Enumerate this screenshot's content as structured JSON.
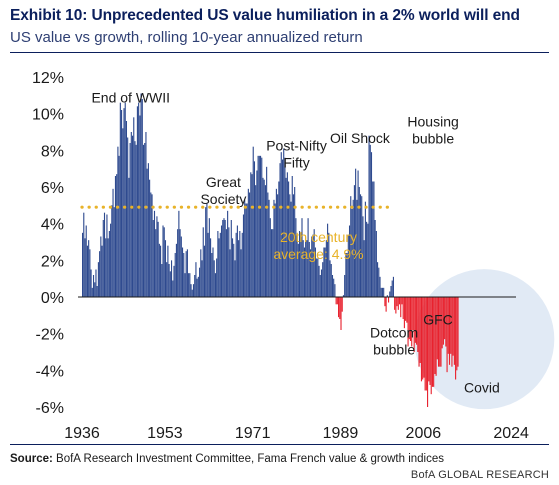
{
  "header": {
    "title": "Exhibit 10: Unprecedented US value humiliation in a 2% world will end",
    "subtitle": "US value vs growth, rolling 10-year annualized return"
  },
  "footer": {
    "source_label": "Source:",
    "source_text": " BofA Research Investment Committee, Fama French value & growth indices",
    "credit": "BofA GLOBAL RESEARCH"
  },
  "colors": {
    "title": "#0b1f5c",
    "positive_series": "#2e4a8f",
    "negative_series": "#e8222e",
    "average_line": "#e8b32a",
    "highlight_ellipse": "#dce6f3"
  },
  "chart_data": {
    "type": "bar",
    "title": "Exhibit 10: Unprecedented US value humiliation in a 2% world will end",
    "subtitle": "US value vs growth, rolling 10-year annualized return",
    "xlabel": "",
    "ylabel": "",
    "x_ticks": [
      "1936",
      "1953",
      "1971",
      "1989",
      "2006",
      "2024"
    ],
    "y_ticks": [
      "12%",
      "10%",
      "8%",
      "6%",
      "4%",
      "2%",
      "0%",
      "-2%",
      "-4%",
      "-6%"
    ],
    "xlim": [
      1936,
      2025
    ],
    "ylim": [
      -6,
      12
    ],
    "unit": "%",
    "grid": false,
    "reference_line": {
      "label": "20th century average: 4.9%",
      "label_lines": [
        "20th century",
        "average: 4.9%"
      ],
      "value": 4.9,
      "x_range": [
        1936,
        2000
      ]
    },
    "annotations": [
      {
        "text_lines": [
          "End of WWII"
        ],
        "x": 1946,
        "y": 10.6
      },
      {
        "text_lines": [
          "Great",
          "Society"
        ],
        "x": 1965,
        "y": 6.0
      },
      {
        "text_lines": [
          "Post-Nifty",
          "Fifty"
        ],
        "x": 1980,
        "y": 8.0
      },
      {
        "text_lines": [
          "Oil Shock"
        ],
        "x": 1993,
        "y": 8.4
      },
      {
        "text_lines": [
          "Housing",
          "bubble"
        ],
        "x": 2008,
        "y": 9.3
      },
      {
        "text_lines": [
          "Dotcom",
          "bubble"
        ],
        "x": 2000,
        "y": -2.2
      },
      {
        "text_lines": [
          "GFC"
        ],
        "x": 2009,
        "y": -1.5
      },
      {
        "text_lines": [
          "Covid"
        ],
        "x": 2018,
        "y": -5.2
      }
    ],
    "series": [
      {
        "name": "",
        "color_positive": "#2e4a8f",
        "color_negative": "#e8222e",
        "x_start": 1936,
        "x_step": 0.25,
        "values": [
          3.5,
          4.6,
          3.2,
          3.9,
          2.8,
          3.1,
          2.6,
          1.5,
          0.5,
          1.2,
          0.8,
          1.5,
          0.6,
          1.9,
          2.5,
          3.3,
          2.8,
          4.2,
          4.6,
          3.2,
          4.5,
          3.2,
          3.6,
          4.0,
          5.0,
          5.9,
          4.9,
          6.6,
          6.7,
          8.2,
          7.7,
          10.6,
          10.2,
          9.2,
          10.3,
          10.6,
          9.6,
          8.7,
          6.5,
          8.4,
          9.0,
          8.8,
          9.8,
          8.5,
          8.3,
          10.4,
          10.6,
          9.9,
          11.1,
          10.8,
          8.3,
          8.4,
          9.0,
          7.0,
          7.3,
          6.4,
          5.7,
          5.6,
          4.2,
          4.7,
          3.7,
          4.4,
          4.1,
          2.9,
          2.8,
          1.8,
          3.9,
          3.8,
          3.1,
          1.9,
          2.8,
          1.8,
          1.4,
          2.0,
          0.9,
          1.7,
          2.4,
          2.9,
          3.7,
          4.7,
          3.7,
          3.3,
          2.7,
          2.4,
          1.3,
          2.5,
          2.6,
          1.3,
          1.3,
          0.7,
          0.4,
          0.7,
          1.2,
          1.9,
          1.0,
          1.1,
          1.6,
          2.6,
          2.0,
          3.8,
          2.8,
          4.9,
          5.1,
          3.5,
          4.3,
          3.2,
          2.4,
          2.7,
          2.0,
          1.3,
          2.1,
          3.6,
          3.2,
          3.5,
          3.9,
          4.2,
          4.3,
          4.2,
          3.7,
          4.7,
          3.8,
          2.6,
          4.2,
          3.2,
          2.9,
          2.0,
          3.5,
          3.9,
          3.1,
          3.6,
          2.6,
          3.5,
          4.5,
          5.3,
          5.1,
          5.1,
          5.9,
          5.7,
          6.8,
          6.7,
          8.2,
          7.4,
          6.1,
          6.9,
          7.7,
          7.7,
          7.7,
          7.6,
          6.5,
          6.4,
          6.1,
          7.1,
          5.7,
          5.3,
          4.3,
          3.7,
          3.7,
          5.3,
          5.1,
          5.9,
          5.6,
          6.3,
          7.3,
          7.9,
          7.5,
          8.1,
          7.6,
          6.5,
          6.8,
          6.3,
          5.6,
          5.2,
          6.6,
          5.6,
          6.0,
          4.3,
          3.4,
          2.9,
          3.6,
          3.5,
          4.3,
          3.1,
          2.7,
          3.1,
          3.1,
          4.3,
          3.0,
          2.6,
          3.3,
          3.4,
          3.7,
          2.7,
          2.1,
          2.1,
          1.7,
          1.2,
          1.5,
          1.9,
          2.7,
          2.7,
          3.1,
          4.0,
          3.5,
          2.0,
          1.8,
          1.2,
          1.0,
          0.7,
          -0.4,
          -0.4,
          -1.1,
          -1.2,
          -1.8,
          -0.8,
          0.1,
          1.2,
          2.4,
          2.4,
          3.4,
          3.9,
          5.5,
          4.8,
          5.3,
          6.1,
          7.0,
          5.3,
          6.9,
          6.0,
          5.6,
          5.5,
          4.4,
          3.1,
          5.2,
          4.1,
          4.0,
          8.8,
          8.3,
          7.9,
          6.3,
          6.3,
          4.2,
          3.6,
          1.9,
          1.6,
          1.1,
          0.5,
          0.5,
          0.5,
          -0.5,
          -0.8,
          0.1,
          -0.3,
          0.3,
          0.6,
          0.9,
          1.1,
          -0.7,
          -0.9,
          -0.5,
          -0.7,
          -0.4,
          -1.1,
          -0.4,
          -1.2,
          -1.7,
          -1.3,
          -1.4,
          -2.7,
          -2.3,
          -2.4,
          -2.7,
          -1.8,
          -3.0,
          -2.5,
          -2.6,
          -3.0,
          -3.8,
          -3.6,
          -4.6,
          -4.5,
          -4.4,
          -5.1,
          -5.1,
          -6.0,
          -4.6,
          -4.8,
          -5.3,
          -4.9,
          -4.9,
          -4.2,
          -4.3,
          -3.4,
          -3.8,
          -3.8,
          -3.8,
          -2.8,
          -2.6,
          -2.3,
          -2.7,
          -4.1,
          -3.1,
          -3.7,
          -3.1,
          -3.8,
          -3.2,
          -3.7,
          -4.5,
          -4.0,
          -3.8
        ]
      }
    ]
  }
}
